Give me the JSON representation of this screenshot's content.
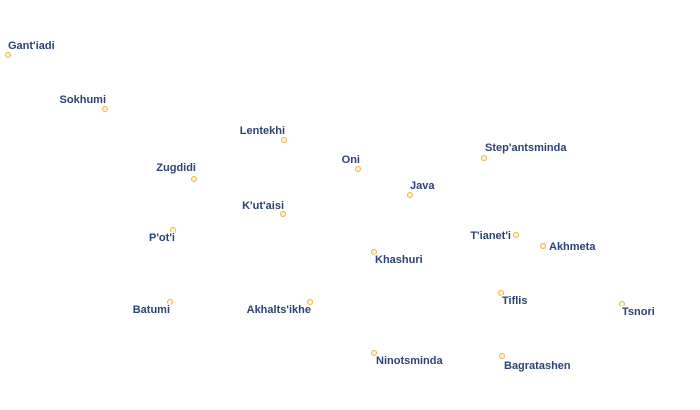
{
  "places": [
    {
      "name": "Gant'iadi"
    },
    {
      "name": "Sokhumi"
    },
    {
      "name": "Lentekhi"
    },
    {
      "name": "Oni"
    },
    {
      "name": "Zugdidi"
    },
    {
      "name": "Step'antsminda"
    },
    {
      "name": "Java"
    },
    {
      "name": "K'ut'aisi"
    },
    {
      "name": "P'ot'i"
    },
    {
      "name": "T'ianet'i"
    },
    {
      "name": "Akhmeta"
    },
    {
      "name": "Khashuri"
    },
    {
      "name": "Tiflis"
    },
    {
      "name": "Tsnori"
    },
    {
      "name": "Batumi"
    },
    {
      "name": "Akhalts'ikhe"
    },
    {
      "name": "Ninotsminda"
    },
    {
      "name": "Bagratashen"
    }
  ]
}
